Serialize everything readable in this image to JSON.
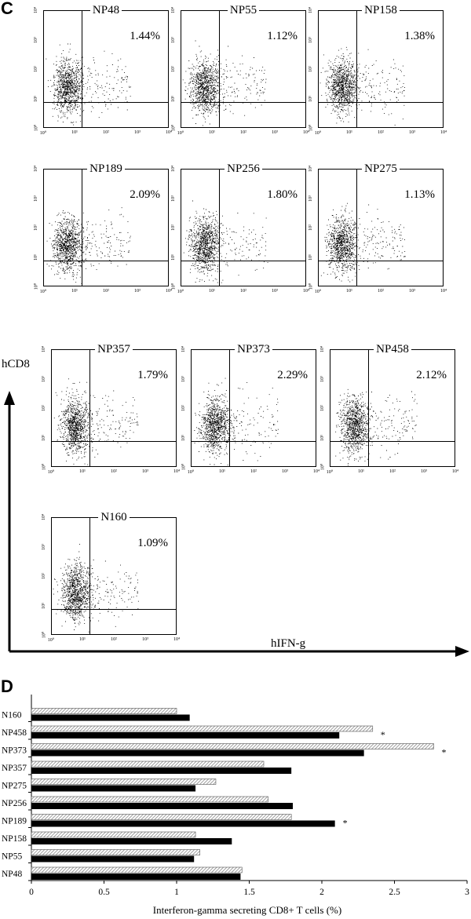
{
  "panels": {
    "c": "C",
    "d": "D"
  },
  "axes_c": {
    "x_label": "hIFN-g",
    "y_label": "hCD8"
  },
  "flow_ticks": [
    "10⁰",
    "10¹",
    "10²",
    "10³",
    "10⁴"
  ],
  "flow_plots": [
    {
      "name": "NP48",
      "percent": "1.44%"
    },
    {
      "name": "NP55",
      "percent": "1.12%"
    },
    {
      "name": "NP158",
      "percent": "1.38%"
    },
    {
      "name": "NP189",
      "percent": "2.09%"
    },
    {
      "name": "NP256",
      "percent": "1.80%"
    },
    {
      "name": "NP275",
      "percent": "1.13%"
    },
    {
      "name": "NP357",
      "percent": "1.79%"
    },
    {
      "name": "NP373",
      "percent": "2.29%"
    },
    {
      "name": "NP458",
      "percent": "2.12%"
    },
    {
      "name": "N160",
      "percent": "1.09%"
    }
  ],
  "chart_data": {
    "type": "bar",
    "orientation": "horizontal",
    "categories": [
      "NP48",
      "NP55",
      "NP158",
      "NP189",
      "NP256",
      "NP275",
      "NP357",
      "NP373",
      "NP458",
      "N160"
    ],
    "series": [
      {
        "style": "hatched",
        "color": "#9a9a9a",
        "values": [
          1.45,
          1.16,
          1.13,
          1.79,
          1.63,
          1.27,
          1.6,
          2.77,
          2.35,
          1.0
        ]
      },
      {
        "style": "solid",
        "color": "#000000",
        "values": [
          1.44,
          1.12,
          1.38,
          2.09,
          1.8,
          1.13,
          1.79,
          2.29,
          2.12,
          1.09
        ]
      }
    ],
    "significant": [
      "NP189",
      "NP373",
      "NP458"
    ],
    "marker": "*",
    "xlabel": "Interferon-gamma secreting CD8+ T cells (%)",
    "xlim": [
      0,
      3
    ],
    "xticks": [
      "0",
      "0.5",
      "1",
      "1.5",
      "2",
      "2.5",
      "3"
    ],
    "grid": false
  }
}
